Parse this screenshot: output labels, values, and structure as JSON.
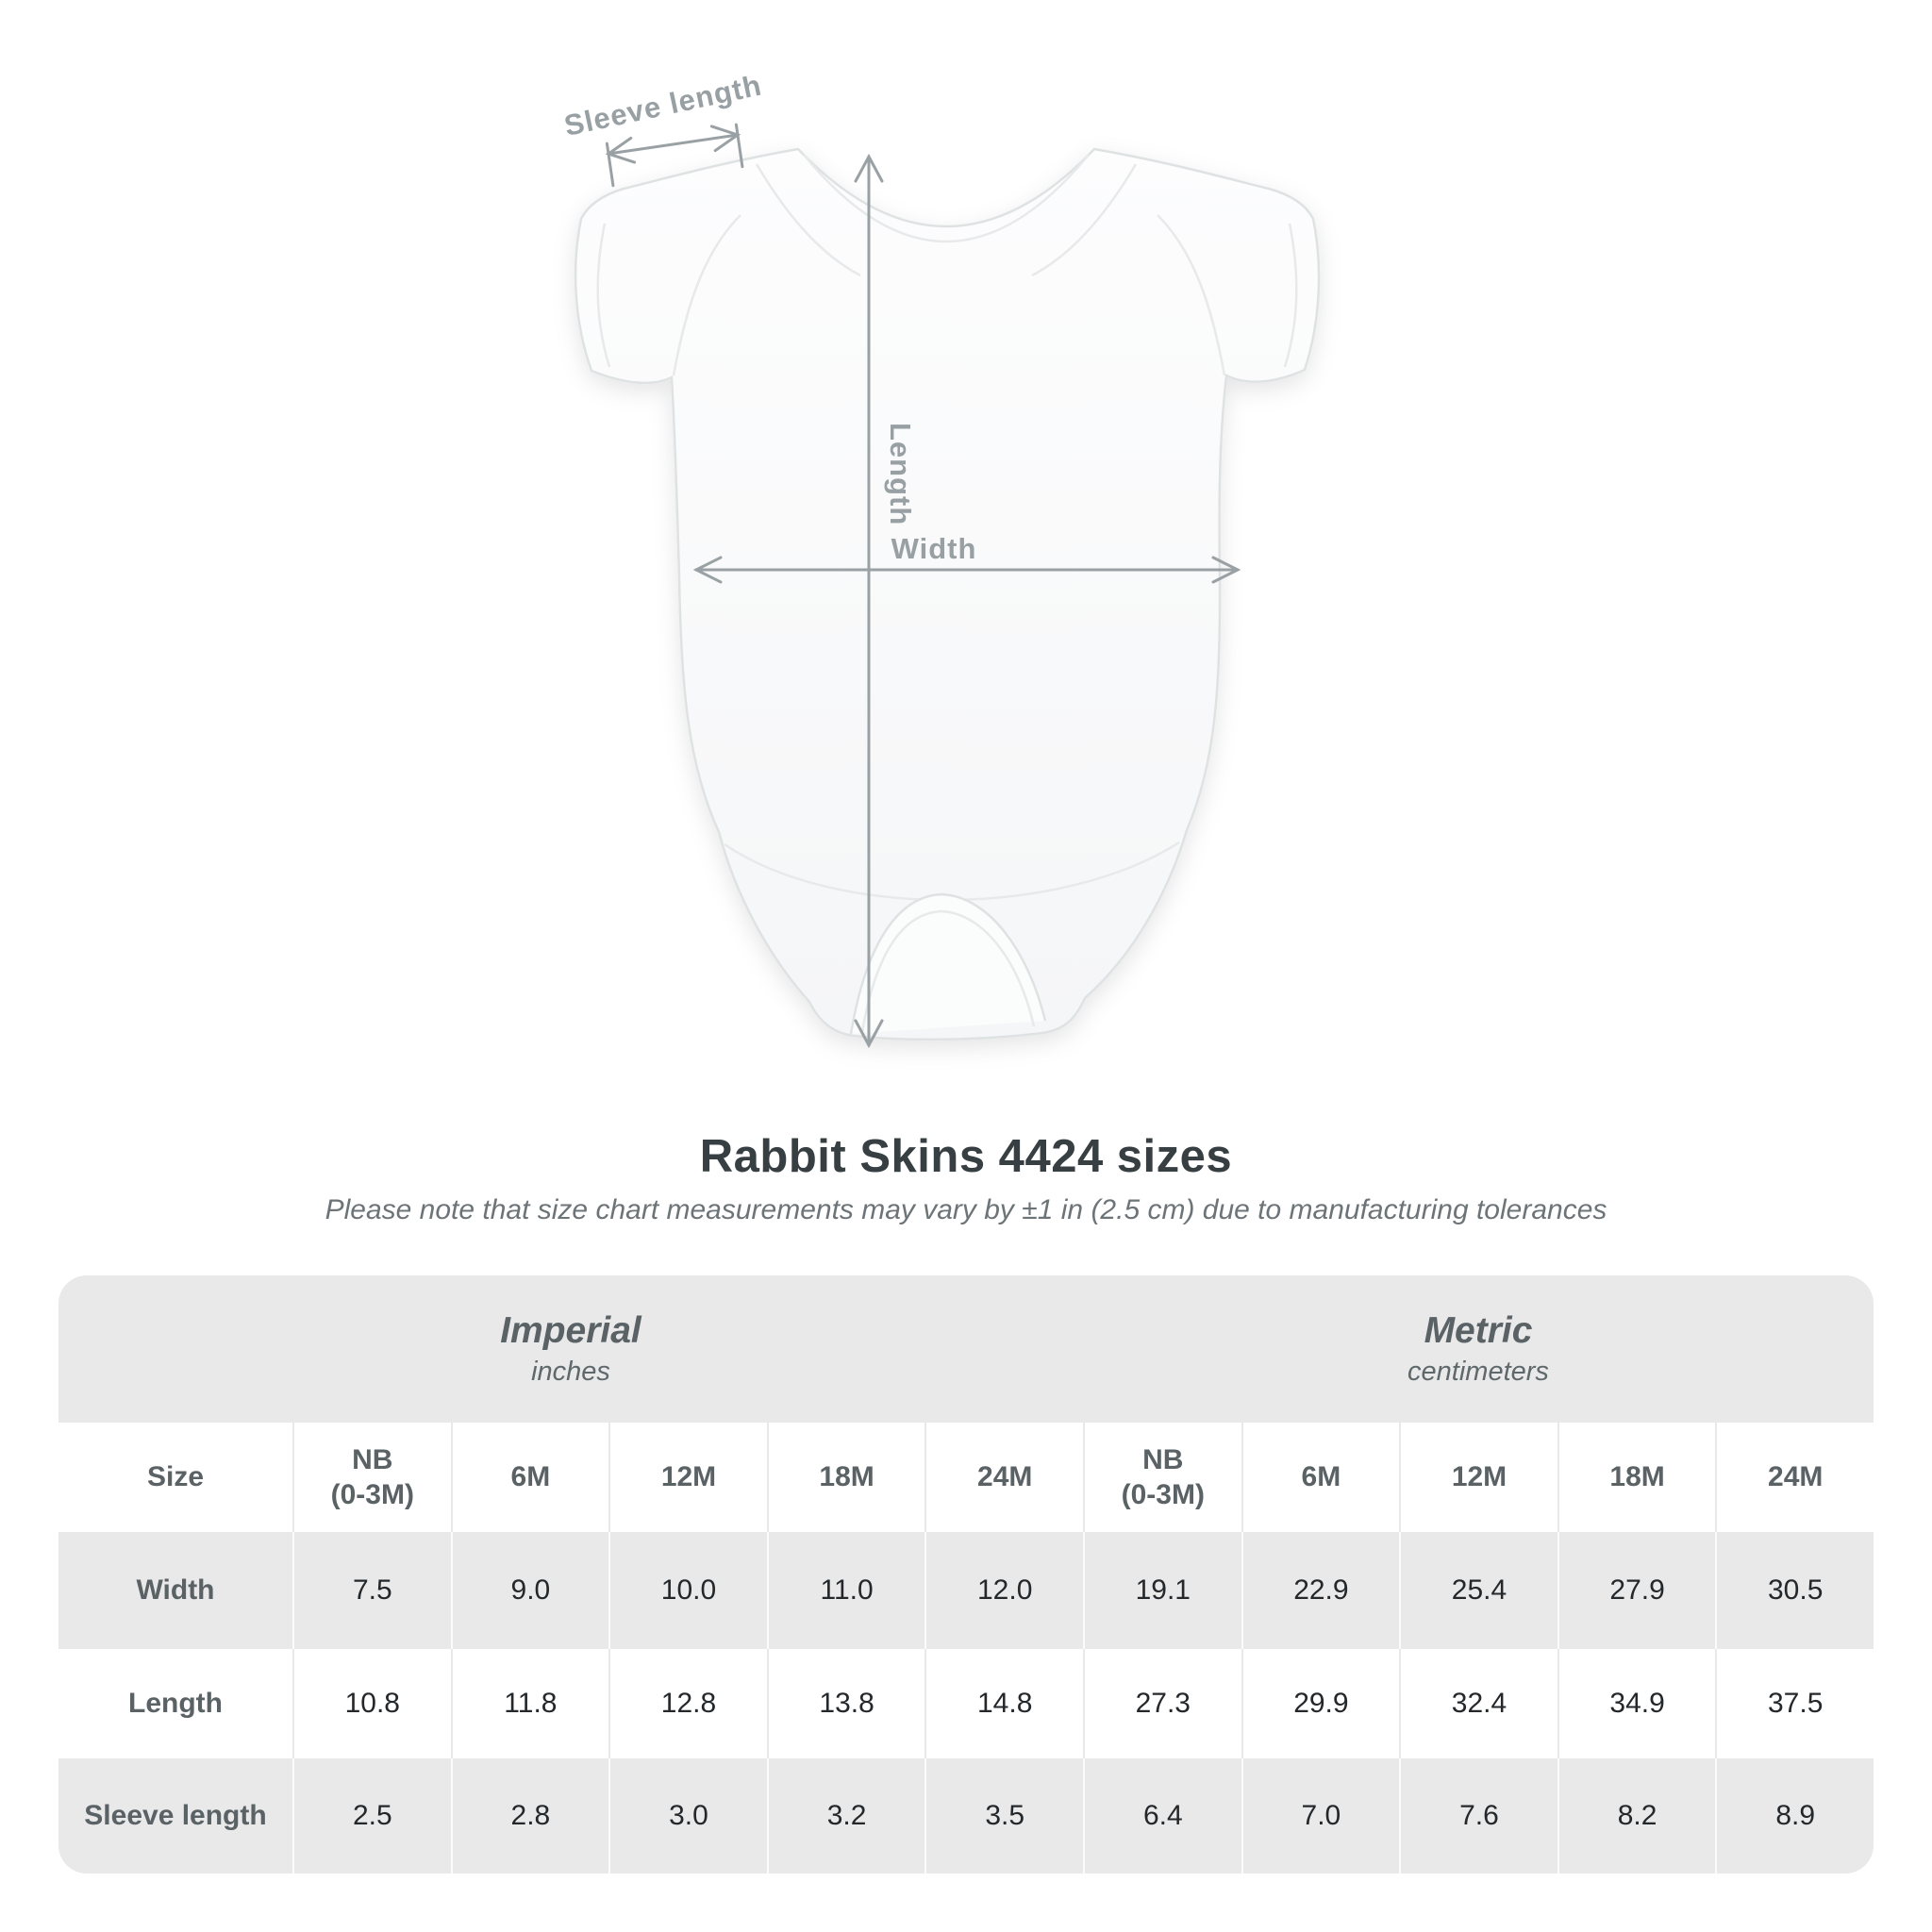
{
  "diagram": {
    "sleeve_label": "Sleeve length",
    "length_label": "Length",
    "width_label": "Width"
  },
  "title": "Rabbit Skins 4424 sizes",
  "note": "Please note that size chart measurements may vary by ±1 in (2.5 cm) due to manufacturing tolerances",
  "table": {
    "row_header": "Size",
    "sections": [
      {
        "name": "Imperial",
        "unit": "inches",
        "columns": [
          "NB\n(0-3M)",
          "6M",
          "12M",
          "18M",
          "24M"
        ]
      },
      {
        "name": "Metric",
        "unit": "centimeters",
        "columns": [
          "NB\n(0-3M)",
          "6M",
          "12M",
          "18M",
          "24M"
        ]
      }
    ],
    "rows": [
      {
        "label": "Width",
        "imperial": [
          "7.5",
          "9.0",
          "10.0",
          "11.0",
          "12.0"
        ],
        "metric": [
          "19.1",
          "22.9",
          "25.4",
          "27.9",
          "30.5"
        ]
      },
      {
        "label": "Length",
        "imperial": [
          "10.8",
          "11.8",
          "12.8",
          "13.8",
          "14.8"
        ],
        "metric": [
          "27.3",
          "29.9",
          "32.4",
          "34.9",
          "37.5"
        ]
      },
      {
        "label": "Sleeve length",
        "imperial": [
          "2.5",
          "2.8",
          "3.0",
          "3.2",
          "3.5"
        ],
        "metric": [
          "6.4",
          "7.0",
          "7.6",
          "8.2",
          "8.9"
        ]
      }
    ]
  },
  "colors": {
    "annotation": "#98a0a4",
    "table_band": "#e9e9ea",
    "header_text": "#5a6265",
    "value_text": "#24282b",
    "title_text": "#373f43"
  }
}
